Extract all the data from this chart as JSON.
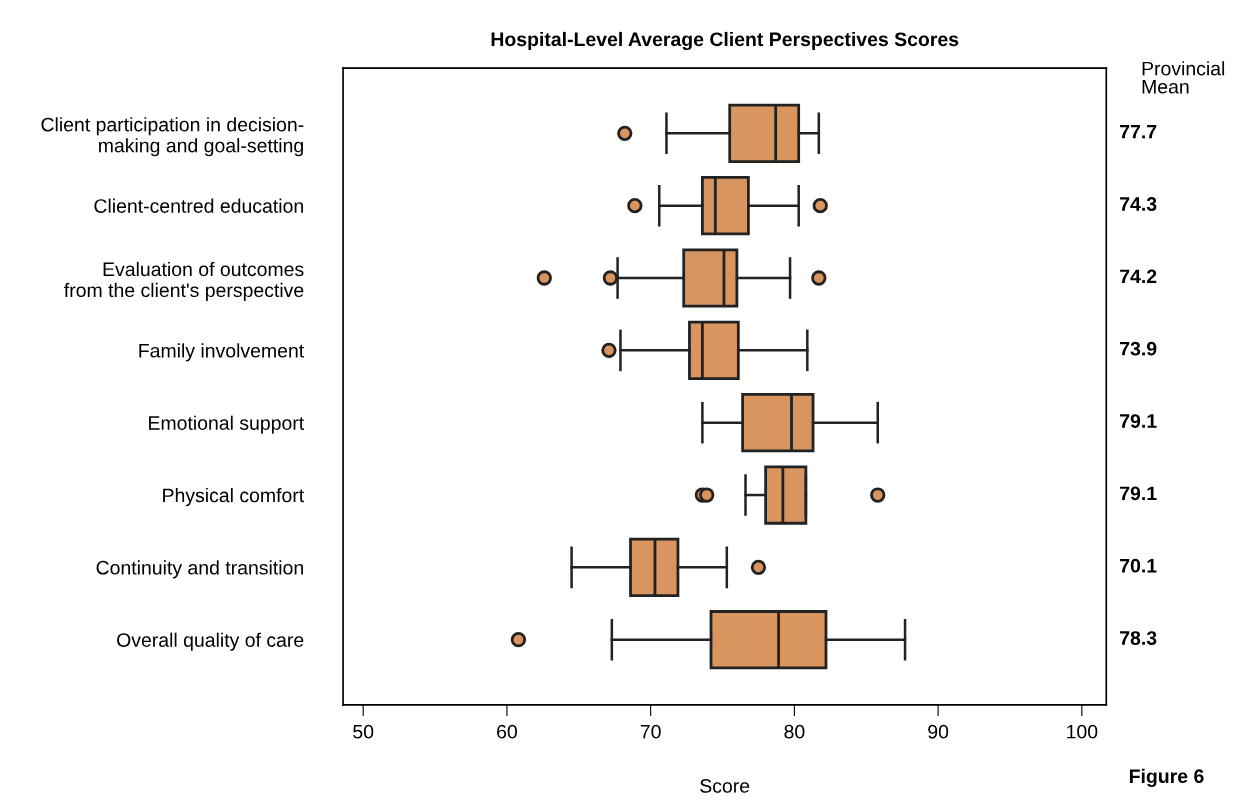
{
  "chart_data": {
    "type": "box",
    "title": "Hospital-Level Average Client Perspectives Scores",
    "xlabel": "Score",
    "orientation": "horizontal",
    "categories": [
      "Client participation in decision-\nmaking and goal-setting",
      "Client-centred education",
      "Evaluation of outcomes\nfrom the client's perspective",
      "Family involvement",
      "Emotional support",
      "Physical comfort",
      "Continuity and transition",
      "Overall quality of care"
    ],
    "boxes": [
      {
        "low": 71.1,
        "q1": 75.5,
        "median": 78.7,
        "q3": 80.3,
        "high": 81.7,
        "outliers": [
          68.2
        ]
      },
      {
        "low": 70.6,
        "q1": 73.6,
        "median": 74.5,
        "q3": 76.8,
        "high": 80.3,
        "outliers": [
          68.9,
          81.8
        ]
      },
      {
        "low": 67.7,
        "q1": 72.3,
        "median": 75.1,
        "q3": 76.0,
        "high": 79.7,
        "outliers": [
          62.6,
          67.2,
          81.7
        ]
      },
      {
        "low": 67.9,
        "q1": 72.7,
        "median": 73.6,
        "q3": 76.1,
        "high": 80.9,
        "outliers": [
          67.1
        ]
      },
      {
        "low": 73.6,
        "q1": 76.4,
        "median": 79.8,
        "q3": 81.3,
        "high": 85.8
      },
      {
        "low": 76.6,
        "q1": 78.0,
        "median": 79.2,
        "q3": 80.8,
        "high": 80.8,
        "outliers": [
          73.6,
          73.9,
          85.8
        ]
      },
      {
        "low": 64.5,
        "q1": 68.6,
        "median": 70.3,
        "q3": 71.9,
        "high": 75.3,
        "outliers": [
          77.5
        ]
      },
      {
        "low": 67.3,
        "q1": 74.2,
        "median": 78.9,
        "q3": 82.2,
        "high": 87.7,
        "outliers": [
          60.8
        ]
      }
    ],
    "color": "#d9955f",
    "marker": "circle",
    "value_labels": [
      "77.7",
      "74.3",
      "74.2",
      "73.9",
      "79.1",
      "79.1",
      "70.1",
      "78.3"
    ],
    "annotations": [
      "Provincial\nMean",
      "Figure 6"
    ],
    "xlim": [
      48.6,
      101.7
    ],
    "xticks": [
      50,
      60,
      70,
      80,
      90,
      100
    ],
    "grid": false,
    "legend": false
  }
}
